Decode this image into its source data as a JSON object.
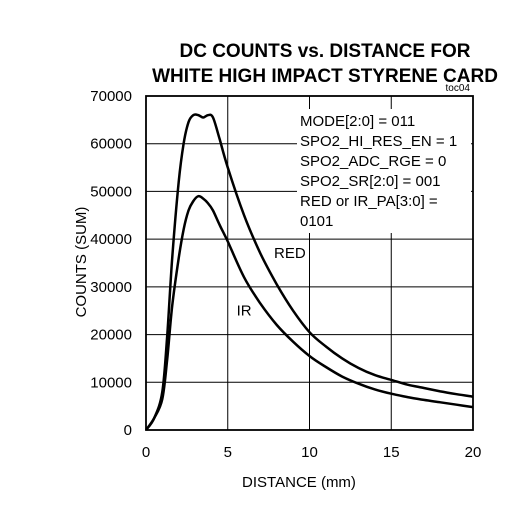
{
  "chart_data": {
    "type": "line",
    "title": [
      "DC COUNTS vs. DISTANCE FOR",
      "WHITE HIGH IMPACT STYRENE CARD"
    ],
    "figure_id": "toc04",
    "xlabel": "DISTANCE (mm)",
    "ylabel": "COUNTS (SUM)",
    "xlim": [
      0,
      20
    ],
    "ylim": [
      0,
      70000
    ],
    "xticks": [
      0,
      5,
      10,
      15,
      20
    ],
    "yticks": [
      0,
      10000,
      20000,
      30000,
      40000,
      50000,
      60000,
      70000
    ],
    "grid": true,
    "annotation_lines": [
      "MODE[2:0] = 011",
      "SPO2_HI_RES_EN = 1",
      "SPO2_ADC_RGE = 0",
      "SPO2_SR[2:0] = 001",
      "RED or IR_PA[3:0] =",
      "0101"
    ],
    "series": [
      {
        "name": "RED",
        "x": [
          0,
          0.5,
          1,
          1.3,
          1.6,
          2.0,
          2.3,
          2.6,
          2.9,
          3.2,
          3.5,
          3.8,
          4.1,
          4.5,
          5,
          6,
          7,
          8,
          9,
          10,
          11,
          12,
          13,
          14,
          15,
          16,
          17,
          18,
          19,
          20
        ],
        "values": [
          0,
          2500,
          8000,
          20000,
          36000,
          52000,
          60000,
          64500,
          66000,
          66000,
          65500,
          66000,
          65500,
          61000,
          55000,
          45000,
          37000,
          30500,
          25000,
          20500,
          17500,
          15000,
          13000,
          11500,
          10500,
          9500,
          8800,
          8100,
          7500,
          7000
        ]
      },
      {
        "name": "IR",
        "x": [
          0,
          0.5,
          1,
          1.3,
          1.6,
          2.0,
          2.3,
          2.6,
          2.9,
          3.2,
          3.5,
          3.8,
          4.1,
          4.5,
          5,
          6,
          7,
          8,
          9,
          10,
          11,
          12,
          13,
          14,
          15,
          16,
          17,
          18,
          19,
          20
        ],
        "values": [
          0,
          2500,
          6500,
          15000,
          26000,
          36000,
          42000,
          46000,
          48000,
          49000,
          48500,
          47500,
          46000,
          43000,
          39500,
          32000,
          26500,
          22000,
          18500,
          15500,
          13200,
          11200,
          9700,
          8500,
          7600,
          6900,
          6300,
          5800,
          5300,
          4800
        ]
      }
    ],
    "series_labels": [
      {
        "series": "RED",
        "text": "RED",
        "x": 8.8,
        "y": 36000
      },
      {
        "series": "IR",
        "text": "IR",
        "x": 6.0,
        "y": 24000
      }
    ]
  }
}
